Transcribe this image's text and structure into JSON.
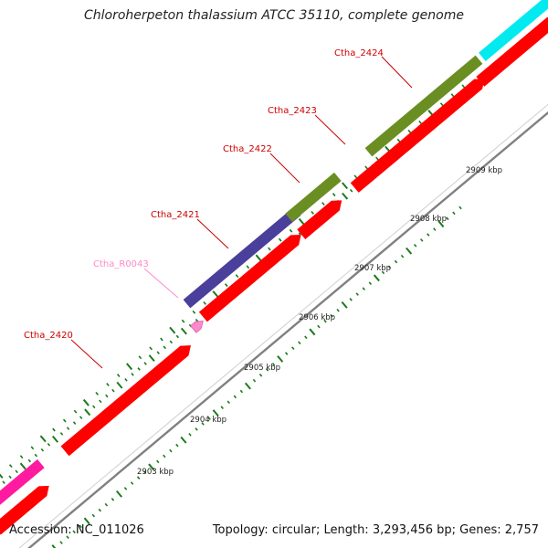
{
  "title": "Chloroherpeton thalassium ATCC 35110, complete genome",
  "footer": {
    "accession_label": "Accession:",
    "accession": "NC_011026",
    "topology_label": "Topology:",
    "topology": "circular",
    "length_label": "Length:",
    "length": "3,293,456 bp",
    "genes_label": "Genes:",
    "genes": "2,757"
  },
  "colors": {
    "cds": "#ff0000",
    "backbone": "#808080",
    "tick": "#1a7a1a",
    "label_cds": "#cc0000",
    "label_rna": "#ff88cc",
    "tick_label": "#222222"
  },
  "scale": {
    "unit": "kbp",
    "labels": [
      "2903 kbp",
      "2904 kbp",
      "2905 kbp",
      "2906 kbp",
      "2907 kbp",
      "2908 kbp",
      "2909 kbp"
    ]
  },
  "features": [
    {
      "id": "Ctha_2420",
      "label": "Ctha_2420",
      "kind": "CDS",
      "color": "#ff0000"
    },
    {
      "id": "Ctha_R0043",
      "label": "Ctha_R0043",
      "kind": "RNA",
      "color": "#ff88cc"
    },
    {
      "id": "Ctha_2421",
      "label": "Ctha_2421",
      "kind": "CDS",
      "color": "#ff0000"
    },
    {
      "id": "Ctha_2422",
      "label": "Ctha_2422",
      "kind": "CDS",
      "color": "#ff0000"
    },
    {
      "id": "Ctha_2423",
      "label": "Ctha_2423",
      "kind": "CDS",
      "color": "#ff0000"
    },
    {
      "id": "Ctha_2424",
      "label": "Ctha_2424",
      "kind": "CDS",
      "color": "#ff0000"
    }
  ],
  "category_bars": [
    {
      "id": "cat-magenta",
      "color": "#ff1aa0"
    },
    {
      "id": "cat-navy",
      "color": "#4a3f9a"
    },
    {
      "id": "cat-olive-1",
      "color": "#6b8e23"
    },
    {
      "id": "cat-olive-2",
      "color": "#6b8e23"
    },
    {
      "id": "cat-cyan",
      "color": "#00eaf0"
    }
  ]
}
